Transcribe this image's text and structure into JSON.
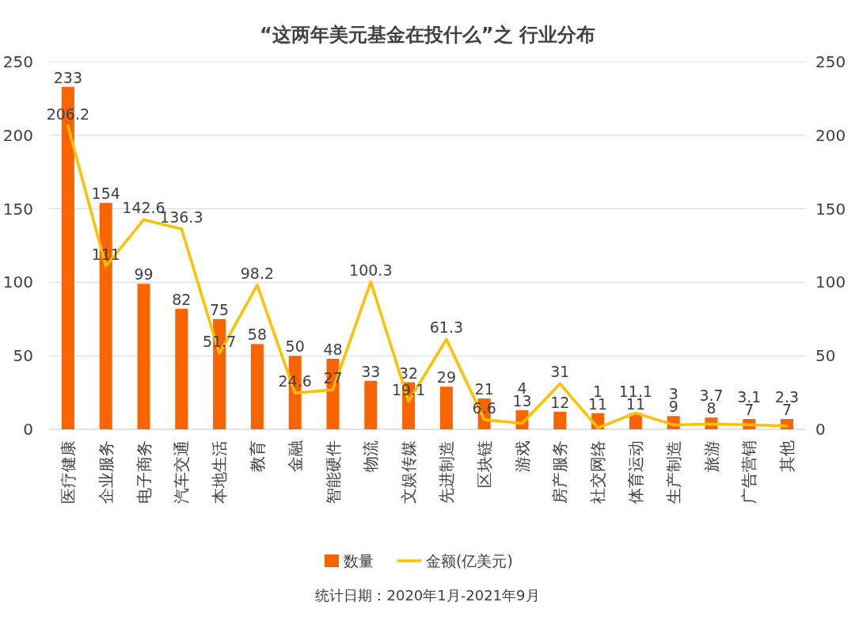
{
  "chart_data": {
    "type": "bar",
    "title": "“这两年美元基金在投什么”之 行业分布",
    "categories": [
      "医疗健康",
      "企业服务",
      "电子商务",
      "汽车交通",
      "本地生活",
      "教育",
      "金融",
      "智能硬件",
      "物流",
      "文娱传媒",
      "先进制造",
      "区块链",
      "游戏",
      "房产服务",
      "社交网络",
      "体育运动",
      "生产制造",
      "旅游",
      "广告营销",
      "其他"
    ],
    "series": [
      {
        "name": "数量",
        "color": "#fa6400",
        "values": [
          233,
          154,
          99,
          82,
          75,
          58,
          50,
          48,
          33,
          32,
          29,
          21,
          13,
          12,
          11,
          11,
          9,
          8,
          7,
          7
        ]
      },
      {
        "name": "金额(亿美元)",
        "type": "line",
        "color": "#ffc000",
        "values": [
          206.2,
          111,
          142.6,
          136.3,
          51.7,
          98.2,
          24.6,
          27,
          100.3,
          19.1,
          61.3,
          6.6,
          4,
          31,
          1,
          11.1,
          3,
          3.7,
          3.1,
          2.3
        ]
      }
    ],
    "ylim": [
      0,
      250
    ],
    "yticks": [
      0,
      50,
      100,
      150,
      200,
      250
    ],
    "y2lim": [
      0,
      250
    ],
    "y2ticks": [
      0,
      50,
      100,
      150,
      200,
      250
    ],
    "grid": "y",
    "legend": "bottom",
    "data_labels": true,
    "marker": "none",
    "annotations": [
      "统计日期：2020年1月-2021年9月"
    ]
  }
}
